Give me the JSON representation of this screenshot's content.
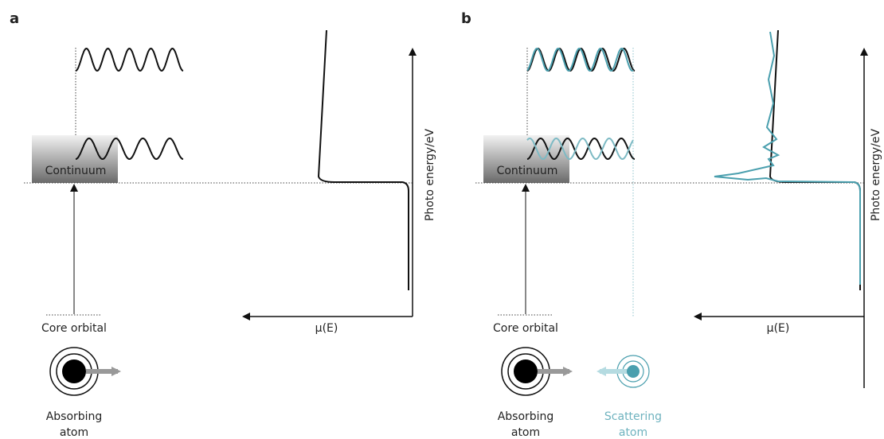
{
  "panels": [
    {
      "label": "a",
      "continuum": "Continuum",
      "y_axis": "Photo energy/eV",
      "x_axis": "μ(E)",
      "core": "Core orbital",
      "atom": [
        "Absorbing",
        "atom"
      ]
    },
    {
      "label": "b",
      "continuum": "Continuum",
      "y_axis": "Photo energy/eV",
      "x_axis": "μ(E)",
      "core": "Core orbital",
      "atom": [
        "Absorbing",
        "atom"
      ],
      "scatter_atom": [
        "Scattering",
        "atom"
      ]
    }
  ]
}
